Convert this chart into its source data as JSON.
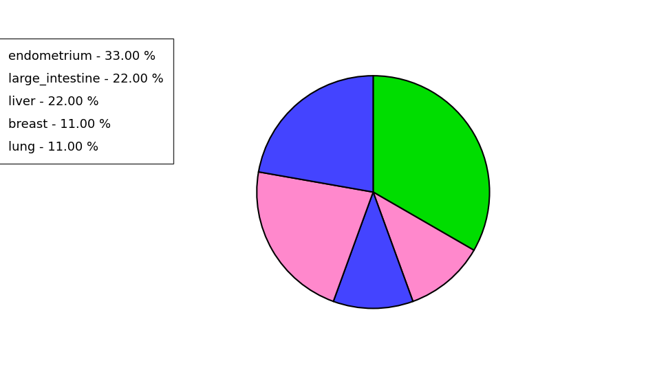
{
  "labels": [
    "endometrium",
    "large_intestine",
    "liver",
    "breast",
    "lung"
  ],
  "values": [
    33,
    22,
    22,
    11,
    11
  ],
  "colors": [
    "#00dd00",
    "#4444ff",
    "#ff88cc",
    "#4444ff",
    "#ff88cc"
  ],
  "legend_labels": [
    "endometrium - 33.00 %",
    "large_intestine - 22.00 %",
    "liver - 22.00 %",
    "breast - 11.00 %",
    "lung - 11.00 %"
  ],
  "legend_colors": [
    "#00dd00",
    "#4444ff",
    "#ff88cc",
    "#4444ff",
    "#ff88cc"
  ],
  "startangle": 90,
  "figsize": [
    9.39,
    5.38
  ],
  "dpi": 100
}
